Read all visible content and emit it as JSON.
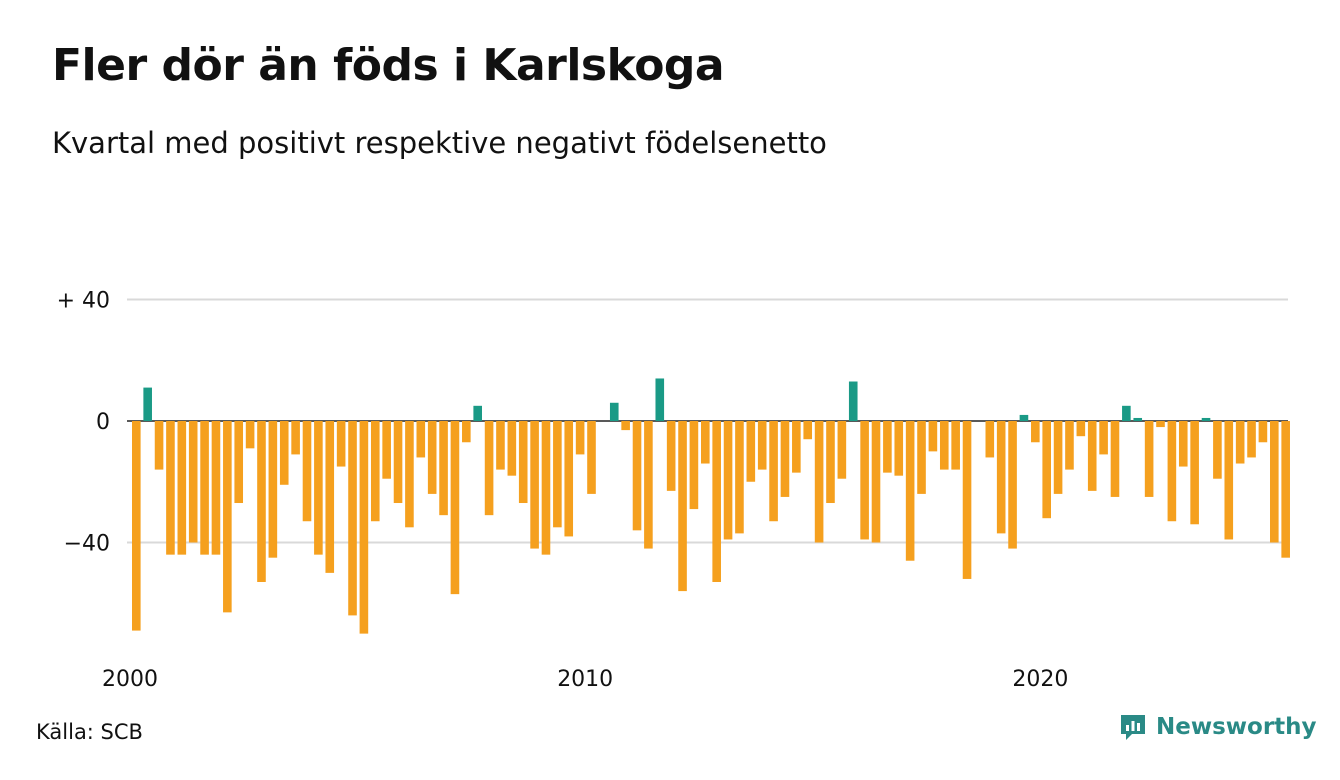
{
  "title": "Fler dör än föds i Karlskoga",
  "subtitle": "Kvartal med positivt respektive negativt födelsenetto",
  "source": "Källa: SCB",
  "brand": "Newsworthy",
  "colors": {
    "positive": "#1a9a86",
    "negative": "#f5a01e",
    "grid": "#d9d9d9",
    "zero": "#222222"
  },
  "chart_data": {
    "type": "bar",
    "title": "Fler dör än föds i Karlskoga",
    "subtitle": "Kvartal med positivt respektive negativt födelsenetto",
    "ylim": [
      -70,
      40
    ],
    "yticks": [
      {
        "value": 40,
        "label": "+ 40"
      },
      {
        "value": 0,
        "label": "0"
      },
      {
        "value": -40,
        "label": "−40"
      }
    ],
    "xticks": [
      {
        "year": 2000,
        "label": "2000"
      },
      {
        "year": 2010,
        "label": "2010"
      },
      {
        "year": 2020,
        "label": "2020"
      }
    ],
    "x_start": "2000 Q1",
    "grid": true,
    "legend": "none",
    "values": [
      -69,
      11,
      -16,
      -44,
      -44,
      -40,
      -44,
      -44,
      -63,
      -27,
      -9,
      -53,
      -45,
      -21,
      -11,
      -33,
      -44,
      -50,
      -15,
      -64,
      -70,
      -33,
      -19,
      -27,
      -35,
      -12,
      -24,
      -31,
      -57,
      -7,
      5,
      -31,
      -16,
      -18,
      -27,
      -42,
      -44,
      -35,
      -38,
      -11,
      -24,
      0,
      6,
      -3,
      -36,
      -42,
      14,
      -23,
      -56,
      -29,
      -14,
      -53,
      -39,
      -37,
      -20,
      -16,
      -33,
      -25,
      -17,
      -6,
      -40,
      -27,
      -19,
      13,
      -39,
      -40,
      -17,
      -18,
      -46,
      -24,
      -10,
      -16,
      -16,
      -52,
      0,
      -12,
      -37,
      -42,
      2,
      -7,
      -32,
      -24,
      -16,
      -5,
      -23,
      -11,
      -25,
      5,
      1,
      -25,
      -2,
      -33,
      -15,
      -34,
      1,
      -19,
      -39,
      -14,
      -12,
      -7,
      -40,
      -45
    ]
  }
}
